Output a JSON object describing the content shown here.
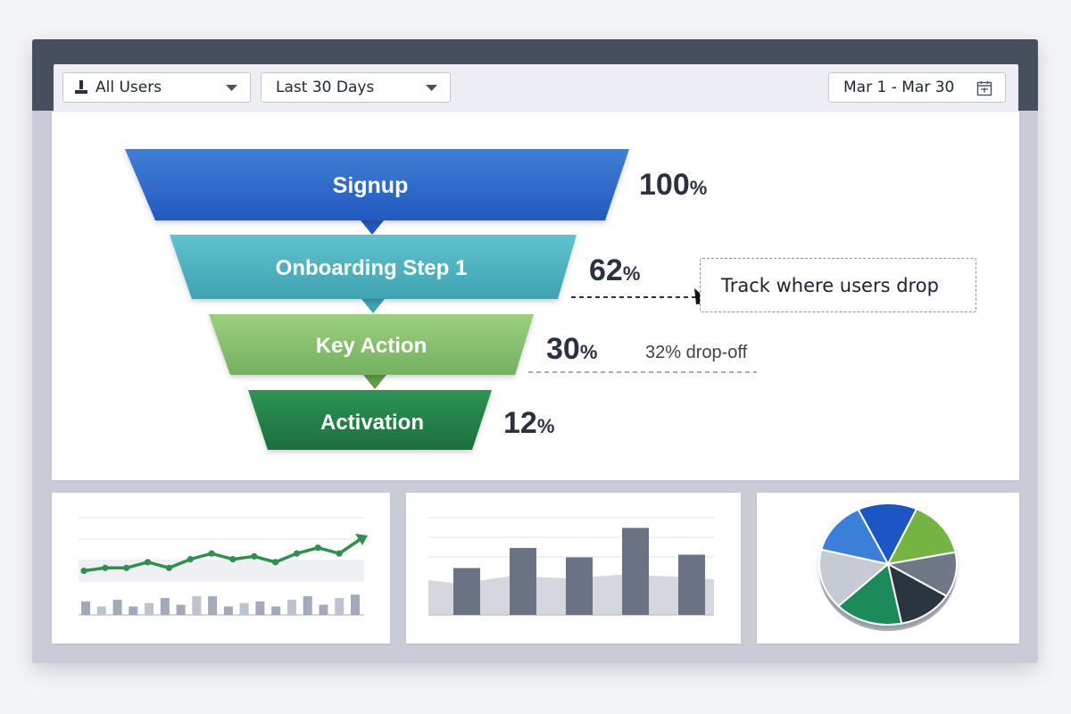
{
  "toolbar": {
    "segment": {
      "label": "All Users",
      "icon": "user-icon"
    },
    "range": {
      "label": "Last 30 Days"
    },
    "date_range": {
      "label": "Mar 1 - Mar 30",
      "icon": "calendar-icon"
    }
  },
  "funnel": {
    "stages": [
      {
        "label": "Signup",
        "value": "100",
        "unit": "%",
        "color_top": "#3f7fd6",
        "color_bottom": "#2558bf"
      },
      {
        "label": "Onboarding Step 1",
        "value": "62",
        "unit": "%",
        "color_top": "#5fc2cc",
        "color_bottom": "#3fa2b2"
      },
      {
        "label": "Key Action",
        "value": "30",
        "unit": "%",
        "color_top": "#9ccf7e",
        "color_bottom": "#74b060"
      },
      {
        "label": "Activation",
        "value": "12",
        "unit": "%",
        "color_top": "#2c9455",
        "color_bottom": "#1d6e3c"
      }
    ],
    "tooltip": "Track where users drop",
    "dropoff": "32% drop-off"
  },
  "mini_charts": {
    "line_chart": {
      "line_values": [
        2,
        3,
        3,
        5,
        3,
        6,
        8,
        6,
        7,
        5,
        8,
        10,
        8,
        13
      ],
      "bar_values": [
        4,
        2.5,
        4.5,
        2.5,
        3.5,
        5,
        3,
        5.5,
        5.5,
        2.5,
        3.5,
        4,
        2.5,
        4.5,
        5.5,
        3,
        5,
        6
      ]
    },
    "bar_chart": {
      "bar_values": [
        3.5,
        5,
        4.3,
        6.5,
        4.5
      ]
    },
    "pie_chart": {
      "slices": [
        {
          "value": 14,
          "color": "#1f56c4"
        },
        {
          "value": 15,
          "color": "#74b342"
        },
        {
          "value": 12,
          "color": "#6f7888"
        },
        {
          "value": 13,
          "color": "#2a3541"
        },
        {
          "value": 16,
          "color": "#1e8a5a"
        },
        {
          "value": 16,
          "color": "#c6cad5"
        },
        {
          "value": 14,
          "color": "#3a7fd9"
        }
      ]
    }
  }
}
